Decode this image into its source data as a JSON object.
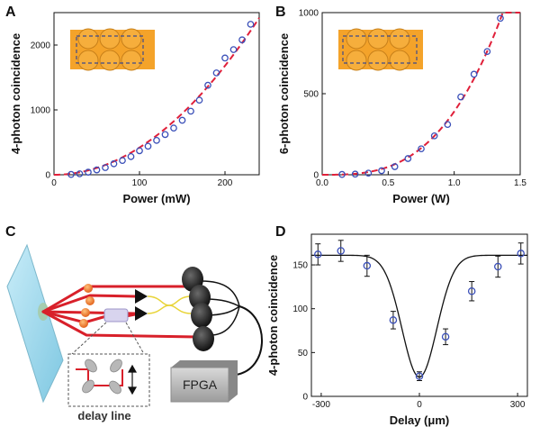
{
  "panels": {
    "a": "A",
    "b": "B",
    "c": "C",
    "d": "D"
  },
  "diagram": {
    "fpga_label": "FPGA",
    "delay_label": "delay line"
  },
  "colors": {
    "points": "#3a4fb8",
    "fit_dashed": "#e0203a",
    "fit_solid": "#111111",
    "inset": "#f4a32a",
    "laser": "#d8202a",
    "crystal": "#9fd8ec"
  },
  "chart_data": [
    {
      "id": "A",
      "type": "scatter",
      "xlabel": "Power (mW)",
      "ylabel": "4-photon coincidence",
      "xlim": [
        0,
        240
      ],
      "ylim": [
        0,
        2500
      ],
      "xticks": [
        0,
        100,
        200
      ],
      "yticks": [
        0,
        1000,
        2000
      ],
      "points": {
        "x": [
          20,
          30,
          40,
          50,
          60,
          70,
          80,
          90,
          100,
          110,
          120,
          130,
          140,
          150,
          160,
          170,
          180,
          190,
          200,
          210,
          220,
          230
        ],
        "y": [
          5,
          15,
          40,
          75,
          110,
          170,
          220,
          280,
          370,
          440,
          530,
          620,
          720,
          840,
          980,
          1150,
          1380,
          1570,
          1800,
          1930,
          2080,
          2320
        ]
      },
      "fit": {
        "style": "dashed",
        "form": "power",
        "exponent": 2,
        "coefficient": 0.042
      }
    },
    {
      "id": "B",
      "type": "scatter",
      "xlabel": "Power (W)",
      "ylabel": "6-photon coincidence",
      "xlim": [
        0.0,
        1.5
      ],
      "ylim": [
        0,
        1000
      ],
      "xticks": [
        0.0,
        0.5,
        1.0,
        1.5
      ],
      "yticks": [
        0,
        500,
        1000
      ],
      "points": {
        "x": [
          0.15,
          0.25,
          0.35,
          0.45,
          0.55,
          0.65,
          0.75,
          0.85,
          0.95,
          1.05,
          1.15,
          1.25,
          1.35
        ],
        "y": [
          2,
          4,
          10,
          25,
          50,
          100,
          160,
          240,
          310,
          480,
          620,
          760,
          965
        ]
      },
      "fit": {
        "style": "dashed",
        "form": "power",
        "exponent": 3,
        "coefficient": 390
      }
    },
    {
      "id": "D",
      "type": "scatter",
      "xlabel": "Delay (μm)",
      "ylabel": "4-photon coincidence",
      "xlim": [
        -330,
        330
      ],
      "ylim": [
        0,
        185
      ],
      "xticks": [
        -300,
        0,
        300
      ],
      "yticks": [
        0,
        50,
        100,
        150
      ],
      "points": {
        "x": [
          -310,
          -240,
          -160,
          -80,
          0,
          80,
          160,
          240,
          310
        ],
        "y": [
          162,
          166,
          149,
          87,
          23,
          68,
          120,
          148,
          163
        ],
        "err": [
          12,
          12,
          12,
          10,
          5,
          9,
          11,
          12,
          12
        ]
      },
      "fit": {
        "style": "solid",
        "form": "dip",
        "baseline": 161,
        "depth": 139,
        "center": 0,
        "width": 75
      }
    }
  ]
}
